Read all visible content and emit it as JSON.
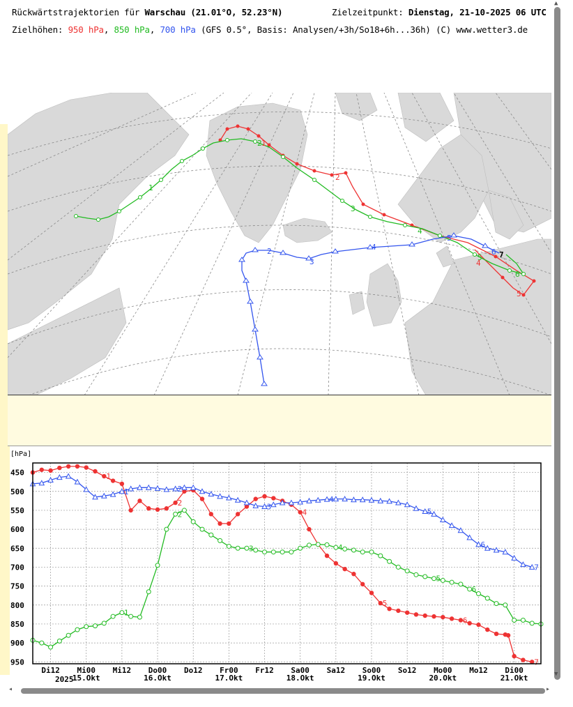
{
  "header": {
    "title_prefix": "Rückwärtstrajektorien für ",
    "city": "Warschau",
    "coords": "(21.01°O, 52.23°N)",
    "target_label": "Zielzeitpunkt: ",
    "target_time": "Dienstag, 21-10-2025  06 UTC",
    "levels_label": "Zielhöhen: ",
    "level_950": "950 hPa",
    "level_850": "850 hPa",
    "level_700": "700 hPa",
    "model_info": "(GFS 0.5°, Basis: Analysen/+3h/So18+6h...36h)",
    "copyright": "(C) www.wetter3.de"
  },
  "colors": {
    "p950": "#ee3333",
    "p850": "#22bb22",
    "p700": "#3355ee",
    "land": "#d9d9d9",
    "sea": "#ffffff",
    "grid": "#888888"
  },
  "map_labels": {
    "red": [
      "1",
      "2",
      "3",
      "4",
      "5",
      "6",
      "7"
    ],
    "green": [
      "1",
      "2",
      "3",
      "4",
      "5",
      "6"
    ],
    "blue": [
      "2",
      "3",
      "4",
      "5",
      "6",
      "7"
    ]
  },
  "chart_data": {
    "type": "line",
    "ylabel": "[hPa]",
    "ylim": [
      950,
      425
    ],
    "yticks": [
      450,
      500,
      550,
      600,
      650,
      700,
      750,
      800,
      850,
      900,
      950
    ],
    "x_hours_range": [
      -72,
      0
    ],
    "xticks": [
      {
        "h": -66,
        "label": "Di12",
        "date": ""
      },
      {
        "h": -54,
        "label": "Mi00",
        "date": "15.Okt"
      },
      {
        "h": -42,
        "label": "Mi12",
        "date": ""
      },
      {
        "h": -30,
        "label": "Do00",
        "date": "16.Okt"
      },
      {
        "h": -18,
        "label": "Do12",
        "date": ""
      },
      {
        "h": -6,
        "label": "Fr00",
        "date": "17.Okt"
      },
      {
        "h": 6,
        "label": "Fr12",
        "date": ""
      },
      {
        "h": 18,
        "label": "Sa00",
        "date": "18.Okt"
      },
      {
        "h": 30,
        "label": "Sa12",
        "date": ""
      },
      {
        "h": 42,
        "label": "So00",
        "date": "19.Okt"
      },
      {
        "h": 54,
        "label": "So12",
        "date": ""
      },
      {
        "h": 66,
        "label": "Mo00",
        "date": "20.Okt"
      },
      {
        "h": 78,
        "label": "Mo12",
        "date": ""
      },
      {
        "h": 90,
        "label": "Di00",
        "date": "21.Okt"
      }
    ],
    "year_label": "2025",
    "series": [
      {
        "name": "950 hPa",
        "points": [
          [
            -72,
            450
          ],
          [
            -69,
            443
          ],
          [
            -66,
            445
          ],
          [
            -63,
            438
          ],
          [
            -60,
            434
          ],
          [
            -57,
            434
          ],
          [
            -54,
            437
          ],
          [
            -51,
            447
          ],
          [
            -48,
            460
          ],
          [
            -45,
            472
          ],
          [
            -42,
            480
          ],
          [
            -39,
            550
          ],
          [
            -36,
            525
          ],
          [
            -33,
            545
          ],
          [
            -30,
            548
          ],
          [
            -27,
            545
          ],
          [
            -24,
            530
          ],
          [
            -21,
            500
          ],
          [
            -18,
            497
          ],
          [
            -15,
            520
          ],
          [
            -12,
            560
          ],
          [
            -9,
            585
          ],
          [
            -6,
            585
          ],
          [
            -3,
            560
          ],
          [
            0,
            540
          ],
          [
            3,
            520
          ],
          [
            6,
            513
          ],
          [
            9,
            518
          ],
          [
            12,
            525
          ],
          [
            15,
            535
          ],
          [
            18,
            555
          ],
          [
            21,
            600
          ],
          [
            24,
            640
          ],
          [
            27,
            670
          ],
          [
            30,
            690
          ],
          [
            33,
            705
          ],
          [
            36,
            718
          ],
          [
            39,
            745
          ],
          [
            42,
            768
          ],
          [
            45,
            795
          ],
          [
            48,
            810
          ],
          [
            51,
            815
          ],
          [
            54,
            820
          ],
          [
            57,
            825
          ],
          [
            60,
            828
          ],
          [
            63,
            830
          ],
          [
            66,
            832
          ],
          [
            69,
            836
          ],
          [
            72,
            840
          ],
          [
            75,
            848
          ],
          [
            78,
            852
          ],
          [
            81,
            865
          ],
          [
            84,
            876
          ],
          [
            87,
            878
          ],
          [
            88,
            880
          ],
          [
            90,
            935
          ],
          [
            93,
            945
          ],
          [
            96,
            950
          ]
        ],
        "labels": [
          [
            -48,
            "1"
          ],
          [
            -24,
            "2"
          ],
          [
            18,
            "4"
          ],
          [
            45,
            "5"
          ],
          [
            72,
            "6"
          ],
          [
            96,
            "7"
          ]
        ]
      },
      {
        "name": "850 hPa",
        "points": [
          [
            -72,
            893
          ],
          [
            -69,
            900
          ],
          [
            -66,
            911
          ],
          [
            -63,
            895
          ],
          [
            -60,
            880
          ],
          [
            -57,
            865
          ],
          [
            -54,
            857
          ],
          [
            -51,
            855
          ],
          [
            -48,
            848
          ],
          [
            -45,
            830
          ],
          [
            -42,
            820
          ],
          [
            -39,
            830
          ],
          [
            -36,
            832
          ],
          [
            -33,
            765
          ],
          [
            -30,
            695
          ],
          [
            -27,
            600
          ],
          [
            -24,
            560
          ],
          [
            -21,
            550
          ],
          [
            -18,
            580
          ],
          [
            -15,
            600
          ],
          [
            -12,
            615
          ],
          [
            -9,
            630
          ],
          [
            -6,
            645
          ],
          [
            -3,
            650
          ],
          [
            0,
            650
          ],
          [
            3,
            655
          ],
          [
            6,
            660
          ],
          [
            9,
            660
          ],
          [
            12,
            660
          ],
          [
            15,
            660
          ],
          [
            18,
            650
          ],
          [
            21,
            642
          ],
          [
            24,
            640
          ],
          [
            27,
            641
          ],
          [
            30,
            648
          ],
          [
            33,
            652
          ],
          [
            36,
            655
          ],
          [
            39,
            660
          ],
          [
            42,
            660
          ],
          [
            45,
            670
          ],
          [
            48,
            685
          ],
          [
            51,
            700
          ],
          [
            54,
            710
          ],
          [
            57,
            720
          ],
          [
            60,
            725
          ],
          [
            63,
            730
          ],
          [
            66,
            735
          ],
          [
            69,
            740
          ],
          [
            72,
            745
          ],
          [
            75,
            758
          ],
          [
            78,
            770
          ],
          [
            81,
            782
          ],
          [
            84,
            796
          ],
          [
            87,
            800
          ],
          [
            90,
            840
          ],
          [
            93,
            840
          ],
          [
            96,
            848
          ],
          [
            99,
            850
          ]
        ],
        "labels": [
          [
            -42,
            "1"
          ],
          [
            -24,
            "2"
          ],
          [
            0,
            "3"
          ],
          [
            30,
            "4"
          ],
          [
            63,
            "5"
          ],
          [
            75,
            "6"
          ]
        ]
      },
      {
        "name": "700 hPa",
        "points": [
          [
            -72,
            480
          ],
          [
            -69,
            478
          ],
          [
            -66,
            470
          ],
          [
            -63,
            463
          ],
          [
            -60,
            460
          ],
          [
            -57,
            475
          ],
          [
            -54,
            495
          ],
          [
            -51,
            515
          ],
          [
            -48,
            512
          ],
          [
            -45,
            508
          ],
          [
            -42,
            500
          ],
          [
            -39,
            493
          ],
          [
            -36,
            490
          ],
          [
            -33,
            490
          ],
          [
            -30,
            492
          ],
          [
            -27,
            495
          ],
          [
            -24,
            493
          ],
          [
            -21,
            490
          ],
          [
            -18,
            490
          ],
          [
            -15,
            500
          ],
          [
            -12,
            507
          ],
          [
            -9,
            513
          ],
          [
            -6,
            517
          ],
          [
            -3,
            523
          ],
          [
            0,
            530
          ],
          [
            3,
            538
          ],
          [
            6,
            540
          ],
          [
            9,
            535
          ],
          [
            12,
            530
          ],
          [
            15,
            530
          ],
          [
            18,
            528
          ],
          [
            21,
            525
          ],
          [
            24,
            523
          ],
          [
            27,
            521
          ],
          [
            30,
            520
          ],
          [
            33,
            520
          ],
          [
            36,
            522
          ],
          [
            39,
            522
          ],
          [
            42,
            523
          ],
          [
            45,
            525
          ],
          [
            48,
            526
          ],
          [
            51,
            530
          ],
          [
            54,
            535
          ],
          [
            57,
            545
          ],
          [
            60,
            553
          ],
          [
            63,
            560
          ],
          [
            66,
            575
          ],
          [
            69,
            590
          ],
          [
            72,
            603
          ],
          [
            75,
            622
          ],
          [
            78,
            640
          ],
          [
            81,
            650
          ],
          [
            84,
            655
          ],
          [
            87,
            660
          ],
          [
            90,
            676
          ],
          [
            93,
            693
          ],
          [
            96,
            700
          ]
        ],
        "labels": [
          [
            -42,
            "1"
          ],
          [
            -24,
            "2"
          ],
          [
            6,
            "3"
          ],
          [
            27,
            "4"
          ],
          [
            60,
            "5"
          ],
          [
            78,
            "6"
          ],
          [
            96,
            "7"
          ]
        ]
      }
    ]
  }
}
